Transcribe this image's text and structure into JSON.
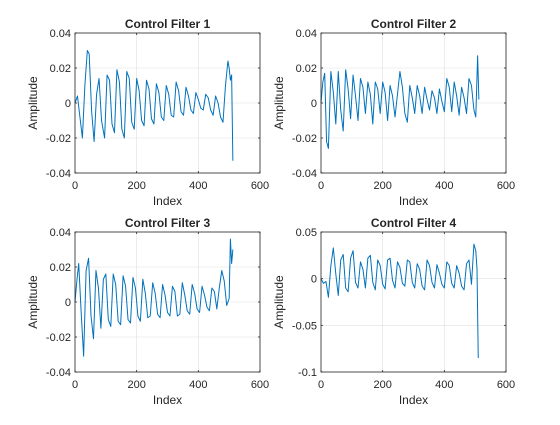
{
  "figure": {
    "background": "#ffffff"
  },
  "colors": {
    "line": "#0072BD",
    "grid": "#e0e0e0",
    "axis": "#262626"
  },
  "chart_data": [
    {
      "type": "line",
      "title": "Control Filter 1",
      "xlabel": "Index",
      "ylabel": "Amplitude",
      "xlim": [
        0,
        600
      ],
      "ylim": [
        -0.04,
        0.04
      ],
      "xticks": [
        0,
        200,
        400,
        600
      ],
      "xtick_labels": [
        "0",
        "200",
        "400",
        "600"
      ],
      "yticks": [
        -0.04,
        -0.02,
        0,
        0.02,
        0.04
      ],
      "ytick_labels": [
        "-0.04",
        "-0.02",
        "0",
        "0.02",
        "0.04"
      ],
      "grid": true,
      "series": [
        {
          "x": [
            0,
            8,
            16,
            24,
            32,
            40,
            46,
            54,
            62,
            70,
            78,
            86,
            96,
            104,
            112,
            120,
            128,
            136,
            144,
            152,
            160,
            168,
            176,
            184,
            192,
            200,
            208,
            216,
            224,
            232,
            240,
            248,
            256,
            264,
            272,
            280,
            288,
            296,
            304,
            312,
            320,
            328,
            336,
            344,
            352,
            360,
            368,
            376,
            384,
            392,
            400,
            408,
            416,
            424,
            432,
            440,
            448,
            456,
            464,
            472,
            480,
            488,
            496,
            500,
            504,
            508,
            512
          ],
          "y": [
            0,
            0.004,
            -0.008,
            -0.02,
            0.01,
            0.03,
            0.028,
            -0.005,
            -0.022,
            0.005,
            0.014,
            -0.01,
            -0.02,
            0.016,
            0.013,
            -0.012,
            -0.017,
            0.019,
            0.012,
            -0.015,
            -0.02,
            0.018,
            0.014,
            -0.011,
            -0.015,
            0.014,
            0.007,
            -0.01,
            -0.013,
            0.013,
            0.008,
            -0.009,
            -0.012,
            0.011,
            0.006,
            -0.008,
            -0.01,
            0.01,
            0.005,
            -0.007,
            -0.008,
            0.012,
            0.007,
            -0.005,
            -0.007,
            0.009,
            0.004,
            -0.004,
            -0.006,
            0.006,
            0.002,
            -0.003,
            -0.004,
            0.005,
            0.003,
            -0.004,
            -0.007,
            0.004,
            0,
            -0.008,
            -0.011,
            0.01,
            0.024,
            0.02,
            0.013,
            0.016,
            -0.033
          ]
        }
      ]
    },
    {
      "type": "line",
      "title": "Control Filter 2",
      "xlabel": "Index",
      "ylabel": "Amplitude",
      "xlim": [
        0,
        600
      ],
      "ylim": [
        -0.04,
        0.04
      ],
      "xticks": [
        0,
        200,
        400,
        600
      ],
      "xtick_labels": [
        "0",
        "200",
        "400",
        "600"
      ],
      "yticks": [
        -0.04,
        -0.02,
        0,
        0.02,
        0.04
      ],
      "ytick_labels": [
        "-0.04",
        "-0.02",
        "0",
        "0.02",
        "0.04"
      ],
      "grid": true,
      "series": [
        {
          "x": [
            0,
            6,
            12,
            18,
            24,
            32,
            40,
            48,
            56,
            64,
            72,
            80,
            88,
            96,
            104,
            112,
            120,
            128,
            136,
            144,
            152,
            160,
            168,
            176,
            184,
            192,
            200,
            208,
            216,
            224,
            232,
            240,
            248,
            256,
            264,
            272,
            280,
            288,
            296,
            304,
            312,
            320,
            328,
            336,
            344,
            352,
            360,
            368,
            376,
            384,
            392,
            400,
            408,
            416,
            424,
            432,
            440,
            448,
            456,
            464,
            472,
            480,
            488,
            496,
            502,
            508,
            512
          ],
          "y": [
            0,
            0.012,
            0.017,
            -0.022,
            -0.026,
            0.018,
            0.006,
            -0.012,
            0.018,
            -0.004,
            -0.016,
            0.019,
            0.008,
            -0.009,
            0.016,
            0.004,
            -0.01,
            0.014,
            0.009,
            -0.006,
            0.012,
            0.005,
            -0.012,
            0.012,
            0.008,
            -0.006,
            0.012,
            0.006,
            -0.01,
            0.01,
            0.004,
            -0.008,
            0.005,
            0.018,
            0.009,
            -0.006,
            -0.011,
            0.01,
            0.003,
            -0.006,
            0.01,
            0.004,
            -0.006,
            0.009,
            0.002,
            -0.004,
            0.007,
            0.003,
            -0.006,
            0.008,
            0.001,
            -0.005,
            0.014,
            0.009,
            -0.005,
            0.012,
            0.004,
            -0.007,
            0.009,
            0.003,
            -0.006,
            0.014,
            0.01,
            -0.004,
            -0.008,
            0.027,
            0.002
          ]
        }
      ]
    },
    {
      "type": "line",
      "title": "Control Filter 3",
      "xlabel": "Index",
      "ylabel": "Amplitude",
      "xlim": [
        0,
        600
      ],
      "ylim": [
        -0.04,
        0.04
      ],
      "xticks": [
        0,
        200,
        400,
        600
      ],
      "xtick_labels": [
        "0",
        "200",
        "400",
        "600"
      ],
      "yticks": [
        -0.04,
        -0.02,
        0,
        0.02,
        0.04
      ],
      "ytick_labels": [
        "-0.04",
        "-0.02",
        "0",
        "0.02",
        "0.04"
      ],
      "grid": true,
      "series": [
        {
          "x": [
            0,
            6,
            12,
            20,
            28,
            36,
            44,
            52,
            60,
            68,
            76,
            84,
            92,
            100,
            108,
            116,
            124,
            132,
            140,
            148,
            156,
            164,
            172,
            180,
            188,
            196,
            204,
            212,
            220,
            228,
            236,
            244,
            252,
            260,
            268,
            276,
            284,
            292,
            300,
            308,
            316,
            324,
            332,
            340,
            348,
            356,
            364,
            372,
            380,
            388,
            396,
            404,
            412,
            420,
            428,
            436,
            444,
            452,
            460,
            468,
            476,
            484,
            492,
            500,
            504,
            508,
            512
          ],
          "y": [
            0,
            0.012,
            0.022,
            -0.006,
            -0.031,
            0.018,
            0.025,
            -0.008,
            -0.021,
            0.018,
            0.008,
            -0.015,
            0.013,
            0.016,
            -0.01,
            -0.014,
            0.016,
            0.01,
            -0.011,
            -0.013,
            0.015,
            0.009,
            -0.01,
            -0.012,
            0.014,
            0.008,
            -0.008,
            -0.011,
            0.013,
            0.005,
            -0.009,
            -0.008,
            0.011,
            0.005,
            -0.007,
            -0.009,
            0.01,
            0.004,
            -0.006,
            -0.008,
            0.009,
            0.006,
            -0.008,
            -0.007,
            0.011,
            0.004,
            -0.005,
            -0.007,
            0.01,
            0.005,
            -0.004,
            -0.006,
            0.009,
            0.004,
            -0.003,
            -0.005,
            0.008,
            0.006,
            -0.004,
            0.008,
            0.018,
            0.012,
            -0.002,
            0.002,
            0.036,
            0.022,
            0.03
          ]
        }
      ]
    },
    {
      "type": "line",
      "title": "Control Filter 4",
      "xlabel": "Index",
      "ylabel": "Amplitude",
      "xlim": [
        0,
        600
      ],
      "ylim": [
        -0.1,
        0.05
      ],
      "xticks": [
        0,
        200,
        400,
        600
      ],
      "xtick_labels": [
        "0",
        "200",
        "400",
        "600"
      ],
      "yticks": [
        -0.1,
        -0.05,
        0,
        0.05
      ],
      "ytick_labels": [
        "-0.1",
        "-0.05",
        "0",
        "0.05"
      ],
      "grid": true,
      "series": [
        {
          "x": [
            0,
            8,
            16,
            24,
            32,
            40,
            48,
            56,
            64,
            72,
            80,
            88,
            96,
            104,
            112,
            120,
            128,
            136,
            144,
            152,
            160,
            168,
            176,
            184,
            192,
            200,
            208,
            216,
            224,
            232,
            240,
            248,
            256,
            264,
            272,
            280,
            288,
            296,
            304,
            312,
            320,
            328,
            336,
            344,
            352,
            360,
            368,
            376,
            384,
            392,
            400,
            408,
            416,
            424,
            432,
            440,
            448,
            456,
            464,
            472,
            480,
            488,
            496,
            502,
            506,
            510
          ],
          "y": [
            0,
            -0.005,
            -0.003,
            -0.02,
            0.014,
            0.033,
            0.005,
            -0.018,
            0.02,
            0.026,
            -0.01,
            -0.014,
            0.022,
            0.03,
            -0.004,
            -0.01,
            0.018,
            0.01,
            -0.01,
            0.022,
            0.025,
            -0.004,
            -0.012,
            0.02,
            0.014,
            -0.006,
            -0.011,
            0.02,
            0.022,
            -0.002,
            -0.01,
            0.018,
            0.012,
            -0.005,
            -0.008,
            0.02,
            0.018,
            -0.004,
            -0.01,
            0.016,
            0.01,
            -0.008,
            -0.012,
            0.02,
            0.014,
            -0.004,
            -0.01,
            0.015,
            0.006,
            -0.006,
            -0.01,
            0.018,
            0.014,
            -0.005,
            -0.01,
            0.014,
            0.006,
            -0.008,
            -0.012,
            0.016,
            0.02,
            -0.006,
            0.037,
            0.03,
            0.01,
            -0.085
          ]
        }
      ]
    }
  ]
}
